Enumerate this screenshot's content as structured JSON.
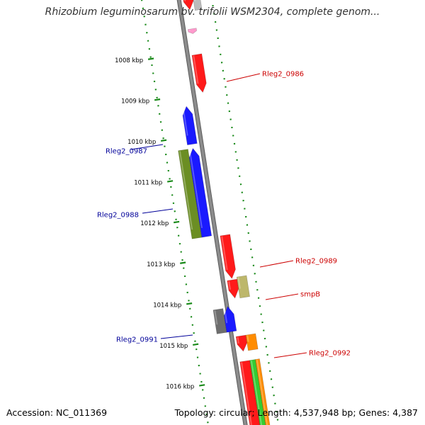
{
  "title": "Rhizobium leguminosarum bv. trifolii WSM2304, complete genom...",
  "footer": {
    "accession": "Accession: NC_011369",
    "summary": "Topology: circular; Length: 4,537,948 bp; Genes: 4,387"
  },
  "ticks": [
    {
      "label": "1008 kbp",
      "value_kbp": 1008
    },
    {
      "label": "1009 kbp",
      "value_kbp": 1009
    },
    {
      "label": "1010 kbp",
      "value_kbp": 1010
    },
    {
      "label": "1011 kbp",
      "value_kbp": 1011
    },
    {
      "label": "1012 kbp",
      "value_kbp": 1012
    },
    {
      "label": "1013 kbp",
      "value_kbp": 1013
    },
    {
      "label": "1014 kbp",
      "value_kbp": 1014
    },
    {
      "label": "1015 kbp",
      "value_kbp": 1015
    },
    {
      "label": "1016 kbp",
      "value_kbp": 1016
    }
  ],
  "gene_labels": [
    {
      "name": "Rleg2_0986",
      "strand": "forward",
      "color": "#cc0000"
    },
    {
      "name": "Rleg2_0987",
      "strand": "reverse",
      "color": "#000099"
    },
    {
      "name": "Rleg2_0988",
      "strand": "reverse",
      "color": "#000099"
    },
    {
      "name": "Rleg2_0989",
      "strand": "forward",
      "color": "#cc0000"
    },
    {
      "name": "smpB",
      "strand": "forward",
      "color": "#cc0000"
    },
    {
      "name": "Rleg2_0991",
      "strand": "reverse",
      "color": "#000099"
    },
    {
      "name": "Rleg2_0992",
      "strand": "forward",
      "color": "#cc0000"
    }
  ],
  "colors": {
    "backbone": "#8c8c8c",
    "tick_track": "#1a8a1a",
    "forward_gene": "#ff1a1a",
    "reverse_gene": "#1a1aff",
    "olive_feature": "#6b8e23",
    "khaki_feature": "#bdb76b",
    "orange_feature": "#ff8c00",
    "grey_feature": "#6e6e6e",
    "pink_feature": "#ff99cc",
    "green_feature": "#33cc33"
  }
}
